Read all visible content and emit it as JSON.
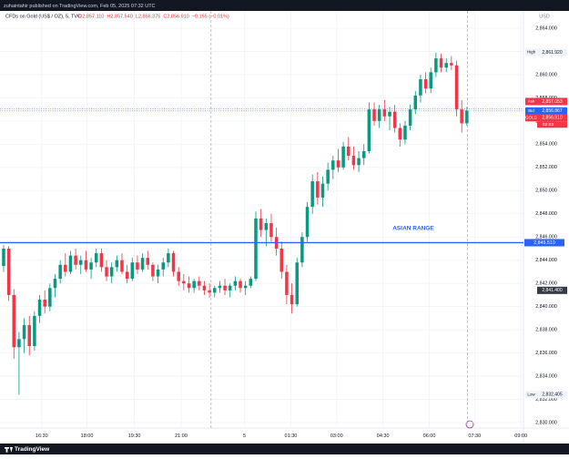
{
  "chart_data": {
    "type": "candlestick",
    "published": "zuhaintahir published on TradingView.com, Feb 05, 2025 07:32 UTC",
    "symbol": "CFDs on Gold (US$ / OZ), 5, TVC",
    "ohlc_text": [
      "O2,857.110",
      "H2,857.540",
      "L2,856.375",
      "C2,856.910",
      "−0.155 (−0.01%)"
    ],
    "currency": "USD",
    "annotation": "ASIAN RANGE",
    "brand": "TradingView",
    "up_color": "#089981",
    "down_color": "#f23645",
    "grid": true,
    "ylim": [
      2829.53,
      2865.49
    ],
    "xlim": [
      -0.7,
      101
    ],
    "yticks": [
      {
        "value": 2830,
        "label": "2,830.000"
      },
      {
        "value": 2832,
        "label": "2,832.000"
      },
      {
        "value": 2834,
        "label": "2,834.000"
      },
      {
        "value": 2836,
        "label": "2,836.000"
      },
      {
        "value": 2838,
        "label": "2,838.000"
      },
      {
        "value": 2840,
        "label": "2,840.000"
      },
      {
        "value": 2842,
        "label": "2,842.000"
      },
      {
        "value": 2844,
        "label": "2,844.000"
      },
      {
        "value": 2846,
        "label": "2,846.000"
      },
      {
        "value": 2848,
        "label": "2,848.000"
      },
      {
        "value": 2850,
        "label": "2,850.000"
      },
      {
        "value": 2852,
        "label": "2,852.000"
      },
      {
        "value": 2854,
        "label": "2,854.000"
      },
      {
        "value": 2856,
        "label": "2,856.000"
      },
      {
        "value": 2858,
        "label": "2,858.000"
      },
      {
        "value": 2860,
        "label": "2,860.000"
      },
      {
        "value": 2862,
        "label": "2,862.000"
      },
      {
        "value": 2864,
        "label": "2,864.000"
      }
    ],
    "xticks": [
      {
        "value": 7.4,
        "label": "16:30"
      },
      {
        "value": 16.2,
        "label": "18:00"
      },
      {
        "value": 25.4,
        "label": "19:30"
      },
      {
        "value": 34.5,
        "label": "21:00"
      },
      {
        "value": 46.8,
        "label": "5"
      },
      {
        "value": 55.8,
        "label": "01:30"
      },
      {
        "value": 64.7,
        "label": "03:00"
      },
      {
        "value": 73.7,
        "label": "04:30"
      },
      {
        "value": 82.7,
        "label": "06:00"
      },
      {
        "value": 91.5,
        "label": "07:30"
      },
      {
        "value": 100.5,
        "label": "09:00"
      }
    ],
    "session_breaks": [
      40.3,
      90.1
    ],
    "level_line": {
      "value": 2845.51,
      "label": "2,845.510",
      "color": "#2962ff"
    },
    "price_labels": [
      {
        "name": "High",
        "value": 2861.92,
        "label": "2,861.920",
        "color": "#f0f3fa"
      },
      {
        "name": "Ask",
        "value": 2857.053,
        "label": "2,857.053",
        "color": "#f23645"
      },
      {
        "name": "Bid",
        "value": 2856.867,
        "label": "2,856.867",
        "color": "#2962ff"
      },
      {
        "name": "GOLD",
        "value": 2856.91,
        "label": "2,856.910",
        "color": "#f23645"
      },
      {
        "value": 2841.4,
        "label": "2,841.400",
        "color": "#363a45"
      },
      {
        "name": "Low",
        "value": 2832.405,
        "label": "2,832.405",
        "color": "#f0f3fa"
      }
    ],
    "countdown": "02:03",
    "candles": [
      [
        2843.5,
        2845.3,
        2843.0,
        2845.0
      ],
      [
        2845.0,
        2845.2,
        2840.5,
        2841.0
      ],
      [
        2841.0,
        2841.5,
        2835.5,
        2836.5
      ],
      [
        2836.5,
        2837.8,
        2832.4,
        2837.2
      ],
      [
        2837.2,
        2839.0,
        2836.0,
        2838.4
      ],
      [
        2838.4,
        2839.2,
        2835.8,
        2836.6
      ],
      [
        2836.6,
        2839.6,
        2836.2,
        2839.2
      ],
      [
        2839.2,
        2841.0,
        2838.6,
        2840.6
      ],
      [
        2840.6,
        2841.4,
        2839.4,
        2840.0
      ],
      [
        2840.0,
        2842.0,
        2839.6,
        2841.6
      ],
      [
        2841.6,
        2842.8,
        2840.8,
        2842.4
      ],
      [
        2842.4,
        2844.0,
        2842.0,
        2843.6
      ],
      [
        2843.6,
        2844.6,
        2842.6,
        2843.0
      ],
      [
        2843.0,
        2844.8,
        2842.8,
        2844.4
      ],
      [
        2844.4,
        2845.0,
        2843.2,
        2843.6
      ],
      [
        2843.6,
        2844.4,
        2842.8,
        2844.0
      ],
      [
        2844.0,
        2844.8,
        2843.0,
        2843.2
      ],
      [
        2843.2,
        2844.2,
        2842.4,
        2843.8
      ],
      [
        2843.8,
        2845.0,
        2843.4,
        2844.6
      ],
      [
        2844.6,
        2845.0,
        2843.0,
        2843.4
      ],
      [
        2843.4,
        2844.0,
        2842.2,
        2842.6
      ],
      [
        2842.6,
        2843.8,
        2842.0,
        2843.4
      ],
      [
        2843.4,
        2844.4,
        2843.0,
        2844.0
      ],
      [
        2844.0,
        2844.6,
        2842.8,
        2843.0
      ],
      [
        2843.0,
        2843.6,
        2842.0,
        2842.4
      ],
      [
        2842.4,
        2844.2,
        2842.2,
        2843.8
      ],
      [
        2843.8,
        2844.4,
        2842.8,
        2843.2
      ],
      [
        2843.2,
        2844.6,
        2843.0,
        2844.2
      ],
      [
        2844.2,
        2844.8,
        2843.2,
        2843.6
      ],
      [
        2843.6,
        2843.8,
        2842.2,
        2842.6
      ],
      [
        2842.6,
        2843.6,
        2842.0,
        2843.2
      ],
      [
        2843.2,
        2844.2,
        2842.6,
        2843.8
      ],
      [
        2843.8,
        2845.0,
        2843.4,
        2844.6
      ],
      [
        2844.6,
        2844.8,
        2842.6,
        2843.0
      ],
      [
        2843.0,
        2843.4,
        2841.8,
        2842.2
      ],
      [
        2842.2,
        2842.8,
        2841.4,
        2842.0
      ],
      [
        2842.0,
        2842.6,
        2841.2,
        2841.6
      ],
      [
        2841.6,
        2842.4,
        2841.2,
        2842.2
      ],
      [
        2842.2,
        2842.6,
        2841.4,
        2841.8
      ],
      [
        2841.8,
        2842.2,
        2841.0,
        2841.4
      ],
      [
        2841.4,
        2842.0,
        2840.8,
        2841.2
      ],
      [
        2841.2,
        2841.8,
        2840.8,
        2841.6
      ],
      [
        2841.6,
        2842.2,
        2841.2,
        2841.8
      ],
      [
        2841.8,
        2842.4,
        2841.0,
        2841.4
      ],
      [
        2841.4,
        2842.0,
        2840.8,
        2841.8
      ],
      [
        2841.8,
        2842.6,
        2841.4,
        2842.2
      ],
      [
        2842.2,
        2842.4,
        2841.2,
        2841.6
      ],
      [
        2841.6,
        2842.2,
        2841.0,
        2841.8
      ],
      [
        2841.8,
        2842.6,
        2841.6,
        2842.4
      ],
      [
        2842.4,
        2848.2,
        2842.2,
        2847.6
      ],
      [
        2847.6,
        2848.4,
        2846.0,
        2846.6
      ],
      [
        2846.6,
        2847.6,
        2845.2,
        2847.2
      ],
      [
        2847.2,
        2848.0,
        2845.6,
        2846.0
      ],
      [
        2846.0,
        2846.8,
        2844.4,
        2845.0
      ],
      [
        2845.0,
        2845.6,
        2842.4,
        2843.0
      ],
      [
        2843.0,
        2843.6,
        2840.2,
        2841.0
      ],
      [
        2841.0,
        2842.0,
        2839.4,
        2840.2
      ],
      [
        2840.2,
        2844.2,
        2840.0,
        2843.8
      ],
      [
        2843.8,
        2846.4,
        2843.4,
        2846.0
      ],
      [
        2846.0,
        2849.0,
        2845.6,
        2848.6
      ],
      [
        2848.6,
        2851.4,
        2848.0,
        2850.8
      ],
      [
        2850.8,
        2851.6,
        2848.8,
        2849.4
      ],
      [
        2849.4,
        2851.2,
        2848.6,
        2850.6
      ],
      [
        2850.6,
        2852.4,
        2850.0,
        2851.8
      ],
      [
        2851.8,
        2853.0,
        2851.0,
        2852.6
      ],
      [
        2852.6,
        2853.6,
        2851.6,
        2852.0
      ],
      [
        2852.0,
        2854.2,
        2851.8,
        2853.8
      ],
      [
        2853.8,
        2854.6,
        2852.6,
        2853.0
      ],
      [
        2853.0,
        2853.8,
        2851.8,
        2852.2
      ],
      [
        2852.2,
        2853.4,
        2851.6,
        2852.8
      ],
      [
        2852.8,
        2854.0,
        2852.2,
        2853.4
      ],
      [
        2853.4,
        2857.6,
        2853.2,
        2857.0
      ],
      [
        2857.0,
        2857.6,
        2855.6,
        2856.0
      ],
      [
        2856.0,
        2857.4,
        2855.4,
        2857.0
      ],
      [
        2857.0,
        2857.8,
        2856.0,
        2856.4
      ],
      [
        2856.4,
        2857.2,
        2855.2,
        2856.8
      ],
      [
        2856.8,
        2857.4,
        2855.0,
        2855.4
      ],
      [
        2855.4,
        2855.8,
        2853.8,
        2854.4
      ],
      [
        2854.4,
        2856.0,
        2854.0,
        2855.6
      ],
      [
        2855.6,
        2857.4,
        2855.2,
        2857.0
      ],
      [
        2857.0,
        2858.6,
        2856.6,
        2858.2
      ],
      [
        2858.2,
        2860.0,
        2857.6,
        2859.6
      ],
      [
        2859.6,
        2860.2,
        2858.4,
        2858.8
      ],
      [
        2858.8,
        2860.6,
        2858.4,
        2860.2
      ],
      [
        2860.2,
        2861.9,
        2859.8,
        2861.4
      ],
      [
        2861.4,
        2861.8,
        2860.2,
        2860.6
      ],
      [
        2860.6,
        2861.4,
        2860.2,
        2861.0
      ],
      [
        2861.0,
        2861.6,
        2860.4,
        2860.8
      ],
      [
        2860.8,
        2861.2,
        2856.4,
        2857.0
      ],
      [
        2857.0,
        2857.8,
        2855.0,
        2855.8
      ],
      [
        2855.8,
        2857.2,
        2855.6,
        2856.9
      ]
    ]
  }
}
